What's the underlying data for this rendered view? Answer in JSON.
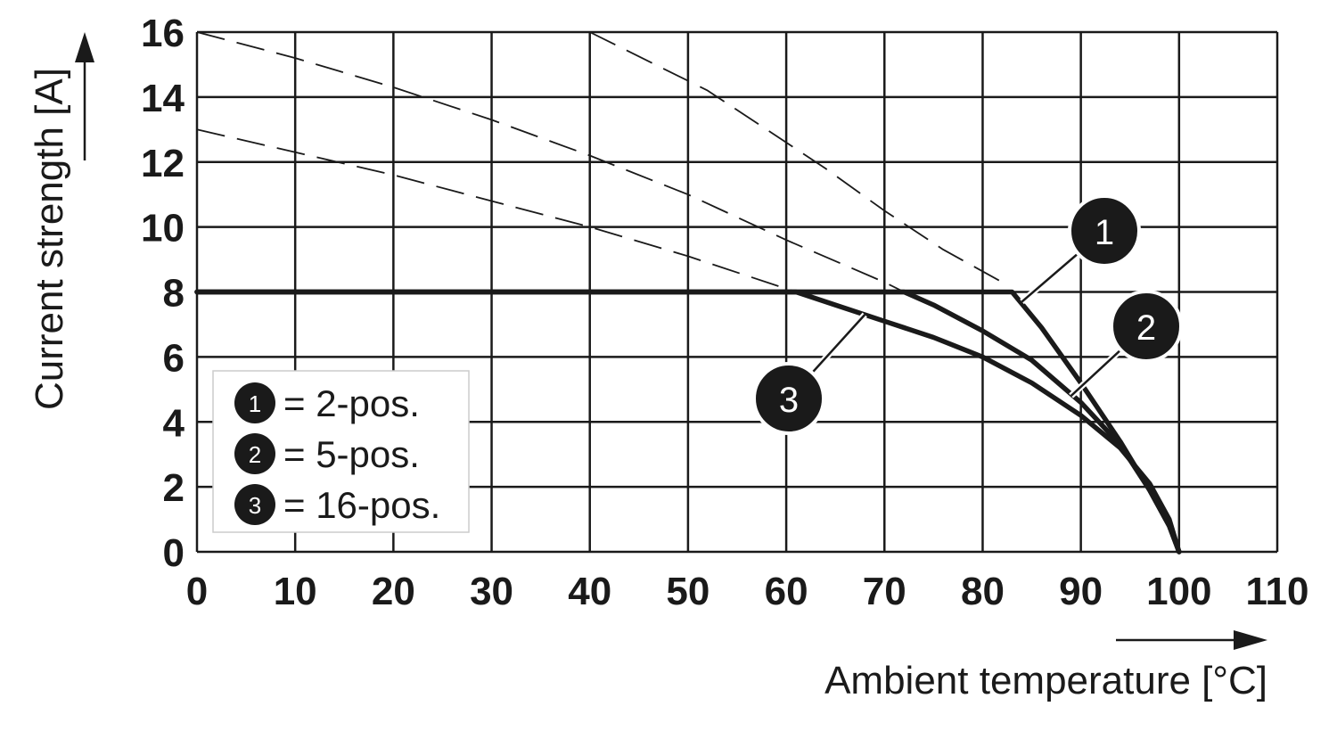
{
  "chart_data": {
    "type": "line",
    "xlabel": "Ambient temperature [°C]",
    "ylabel": "Current strength [A]",
    "xlim": [
      0,
      110
    ],
    "ylim": [
      0,
      16
    ],
    "x_ticks": [
      "0",
      "10",
      "20",
      "30",
      "40",
      "50",
      "60",
      "70",
      "80",
      "90",
      "100",
      "110"
    ],
    "y_ticks": [
      "0",
      "2",
      "4",
      "6",
      "8",
      "10",
      "12",
      "14",
      "16"
    ],
    "grid": true,
    "series": [
      {
        "name": "2-pos.",
        "marker": "1",
        "x": [
          0,
          83,
          86,
          90,
          94,
          97,
          99,
          100
        ],
        "y": [
          8,
          8,
          6.9,
          5.2,
          3.4,
          1.9,
          0.8,
          0
        ]
      },
      {
        "name": "5-pos.",
        "marker": "2",
        "x": [
          0,
          72,
          75,
          80,
          85,
          90,
          94,
          97,
          99,
          100
        ],
        "y": [
          8,
          8,
          7.6,
          6.8,
          5.9,
          4.6,
          3.3,
          1.9,
          0.8,
          0
        ]
      },
      {
        "name": "16-pos.",
        "marker": "3",
        "x": [
          0,
          61,
          65,
          70,
          75,
          80,
          85,
          90,
          94,
          97,
          99,
          100
        ],
        "y": [
          8,
          8,
          7.6,
          7.1,
          6.6,
          6.0,
          5.2,
          4.2,
          3.2,
          2.1,
          1.0,
          0
        ]
      }
    ],
    "reference_curves": [
      {
        "marker": "1",
        "x": [
          40,
          46,
          52,
          58,
          64,
          70,
          76,
          82
        ],
        "y": [
          16,
          15.1,
          14.2,
          13.0,
          11.8,
          10.5,
          9.3,
          8.3
        ]
      },
      {
        "marker": "2",
        "x": [
          0,
          10,
          20,
          30,
          40,
          50,
          60,
          70,
          72
        ],
        "y": [
          16,
          15.2,
          14.3,
          13.3,
          12.2,
          11.0,
          9.6,
          8.3,
          8
        ]
      },
      {
        "marker": "3",
        "x": [
          0,
          10,
          20,
          30,
          40,
          50,
          60,
          61
        ],
        "y": [
          13,
          12.3,
          11.6,
          10.8,
          10.0,
          9.1,
          8.1,
          8
        ]
      }
    ],
    "legend": {
      "placement": "bottom-left",
      "entries": [
        {
          "marker": "1",
          "text": "= 2-pos."
        },
        {
          "marker": "2",
          "text": "= 5-pos."
        },
        {
          "marker": "3",
          "text": "= 16-pos."
        }
      ]
    },
    "callouts": [
      {
        "marker": "1",
        "point": [
          84,
          7.7
        ]
      },
      {
        "marker": "2",
        "point": [
          89,
          4.8
        ]
      },
      {
        "marker": "3",
        "point": [
          68,
          7.3
        ]
      }
    ]
  }
}
